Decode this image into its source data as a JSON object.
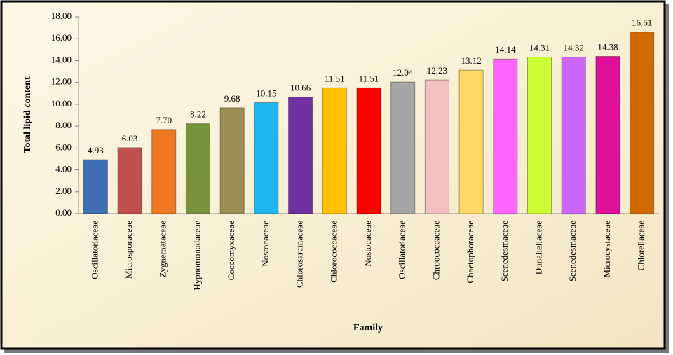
{
  "chart_data": {
    "type": "bar",
    "y_axis_label": "Total lipid  content",
    "x_axis_label": "Family",
    "categories": [
      "Oscillatoriaceae",
      "Microsporaceae",
      "Zygnemataceae",
      "Hypnomonadaceae",
      "Coccomyxaceae",
      "Nostocaceae",
      "Chlorosarcinaceae",
      "Chlorococcaceae",
      "Nostocaceae",
      "Oscillatoriaceae",
      "Chroococcaceae",
      "Chaetophoraceae",
      "Scenedesmaceae",
      "Dunaliellaceae",
      "Scenedesmaceae",
      "Microcystaceae",
      "Chlorellaceae"
    ],
    "values": [
      4.93,
      6.03,
      7.7,
      8.22,
      9.68,
      10.15,
      10.66,
      11.51,
      11.51,
      12.04,
      12.23,
      13.12,
      14.14,
      14.31,
      14.32,
      14.38,
      16.61
    ],
    "value_labels": [
      "4.93",
      "6.03",
      "7.70",
      "8.22",
      "9.68",
      "10.15",
      "10.66",
      "11.51",
      "11.51",
      "12.04",
      "12.23",
      "13.12",
      "14.14",
      "14.31",
      "14.32",
      "14.38",
      "16.61"
    ],
    "colors": [
      "#3f6fb5",
      "#c0504d",
      "#f07820",
      "#76923c",
      "#9c8e54",
      "#1fb5f0",
      "#7030a0",
      "#ffc000",
      "#ff0000",
      "#a6a6a6",
      "#f2c0c0",
      "#ffd966",
      "#ff66ff",
      "#ccff33",
      "#cc66ff",
      "#e0109a",
      "#d06a00"
    ],
    "ylim": [
      0,
      18
    ],
    "yticks": [
      {
        "value": 0,
        "label": "0.00"
      },
      {
        "value": 2,
        "label": "2.00"
      },
      {
        "value": 4,
        "label": "4.00"
      },
      {
        "value": 6,
        "label": "6.00"
      },
      {
        "value": 8,
        "label": "8.00"
      },
      {
        "value": 10,
        "label": "10.00"
      },
      {
        "value": 12,
        "label": "12.00"
      },
      {
        "value": 14,
        "label": "14.00"
      },
      {
        "value": 16,
        "label": "16.00"
      },
      {
        "value": 18,
        "label": "18.00"
      }
    ],
    "grid": false
  }
}
